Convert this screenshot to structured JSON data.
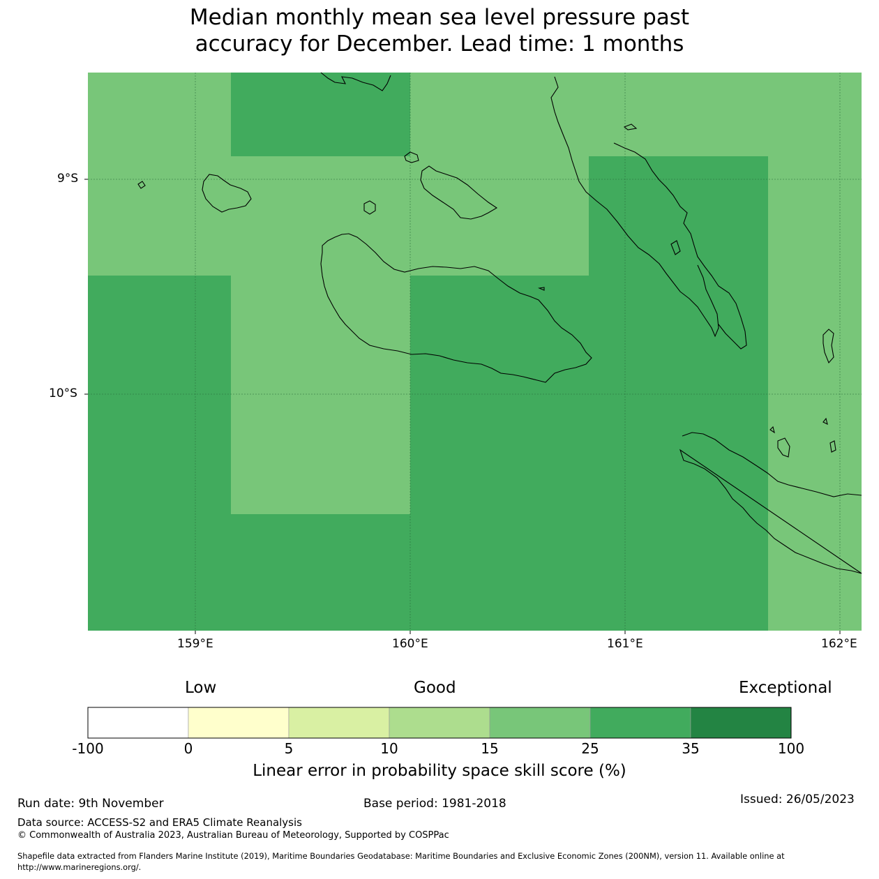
{
  "title": {
    "line1": "Median monthly mean sea level pressure past",
    "line2": "accuracy for December. Lead time: 1 months"
  },
  "map": {
    "lat_labels": [
      "9°S",
      "10°S"
    ],
    "lon_labels": [
      "159°E",
      "160°E",
      "161°E",
      "162°E"
    ],
    "colors": {
      "medium": "#78c679",
      "dark": "#41ab5d"
    }
  },
  "legend": {
    "qualitative": [
      "Low",
      "Good",
      "Exceptional"
    ],
    "ticks": [
      "-100",
      "0",
      "5",
      "10",
      "15",
      "25",
      "35",
      "100"
    ],
    "colors": [
      "#ffffff",
      "#ffffcc",
      "#d9f0a3",
      "#addd8e",
      "#78c679",
      "#41ab5d",
      "#238443"
    ],
    "title": "Linear error in probability space skill score (%)"
  },
  "footer": {
    "run_date": "Run date: 9th November",
    "base_period": "Base period: 1981-2018",
    "issued": "Issued: 26/05/2023",
    "data_source": "Data source: ACCESS-S2 and ERA5 Climate Reanalysis",
    "copyright": "© Commonwealth of Australia 2023, Australian Bureau of Meteorology, Supported by COSPPac",
    "shapefile_1": "Shapefile data extracted from Flanders Marine Institute (2019), Maritime Boundaries Geodatabase: Maritime Boundaries and Exclusive Economic Zones (200NM), version 11. Available online at",
    "shapefile_2": "http://www.marineregions.org/."
  }
}
